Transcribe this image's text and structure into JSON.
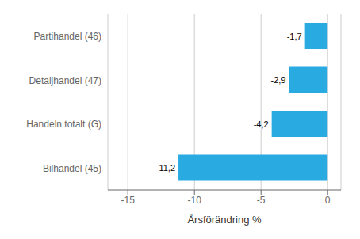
{
  "chart_data": {
    "type": "bar",
    "orientation": "horizontal",
    "categories": [
      "Bilhandel (45)",
      "Handeln totalt (G)",
      "Detaljhandel (47)",
      "Partihandel (46)"
    ],
    "values": [
      -11.2,
      -4.2,
      -2.9,
      -1.7
    ],
    "value_labels": [
      "-11,2",
      "-4,2",
      "-2,9",
      "-1,7"
    ],
    "data_labels": true,
    "color": "#29abe2",
    "xlabel": "Årsförändring %",
    "xlim": [
      -16.5,
      1.0
    ],
    "xticks": [
      -15,
      -10,
      -5,
      0
    ],
    "grid": true
  }
}
